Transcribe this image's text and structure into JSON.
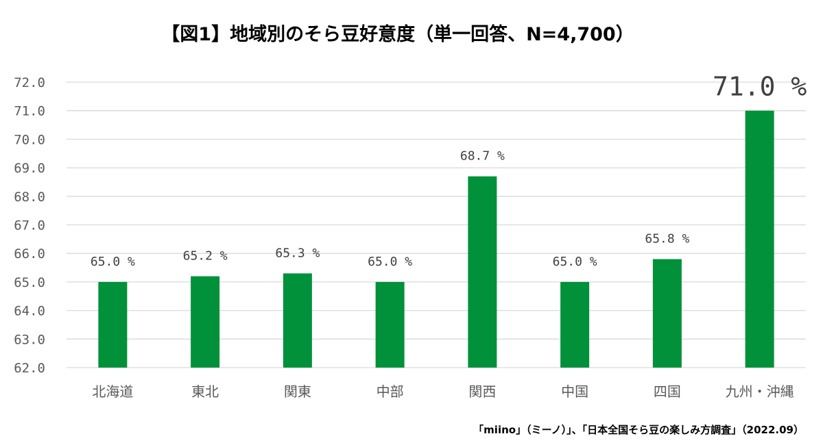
{
  "chart_data": {
    "type": "bar",
    "title": "【図1】地域別のそら豆好意度（単一回答、N=4,700）",
    "categories": [
      "北海道",
      "東北",
      "関東",
      "中部",
      "関西",
      "中国",
      "四国",
      "九州・沖縄"
    ],
    "values": [
      65.0,
      65.2,
      65.3,
      65.0,
      68.7,
      65.0,
      65.8,
      71.0
    ],
    "data_labels": [
      "65.0 %",
      "65.2 %",
      "65.3 %",
      "65.0 %",
      "68.7 %",
      "65.0 %",
      "65.8 %",
      "71.0 %"
    ],
    "ylim": [
      62.0,
      72.0
    ],
    "yticks": [
      "62.0",
      "63.0",
      "64.0",
      "65.0",
      "66.0",
      "67.0",
      "68.0",
      "69.0",
      "70.0",
      "71.0",
      "72.0"
    ],
    "grid": true,
    "bar_color": "#00913A",
    "highlighted_category": "九州・沖縄",
    "source": "「miino」（ミーノ）」、「日本全国そら豆の楽しみ方調査」（2022.09）"
  }
}
